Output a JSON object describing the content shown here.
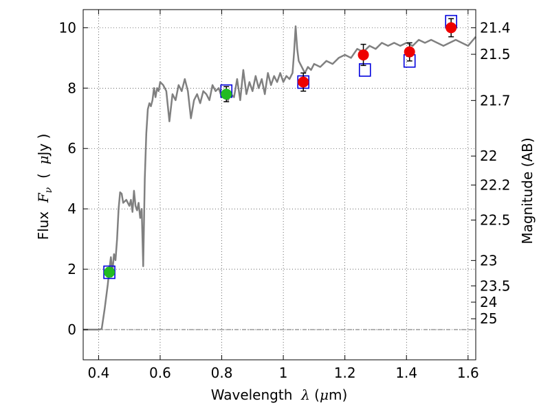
{
  "chart_data": {
    "type": "scatter",
    "xlabel": {
      "text": "Wavelength",
      "var": "λ",
      "unit_open": "(",
      "unit_mu": "μ",
      "unit_rest": "m)"
    },
    "ylabel": {
      "text": "Flux",
      "var": "F",
      "sub": "ν",
      "unit_open": "(",
      "unit_mu": "μ",
      "unit_rest": "Jy )"
    },
    "y2label": "Magnitude (AB)",
    "xlim": [
      0.35,
      1.625
    ],
    "ylim": [
      -1,
      10.6
    ],
    "grid": true,
    "x_ticks": [
      {
        "v": 0.4,
        "label": "0.4"
      },
      {
        "v": 0.6,
        "label": "0.6"
      },
      {
        "v": 0.8,
        "label": "0.8"
      },
      {
        "v": 1.0,
        "label": "1"
      },
      {
        "v": 1.2,
        "label": "1.2"
      },
      {
        "v": 1.4,
        "label": "1.4"
      },
      {
        "v": 1.6,
        "label": "1.6"
      }
    ],
    "y_ticks": [
      {
        "v": 0,
        "label": "0"
      },
      {
        "v": 2,
        "label": "2"
      },
      {
        "v": 4,
        "label": "4"
      },
      {
        "v": 6,
        "label": "6"
      },
      {
        "v": 8,
        "label": "8"
      },
      {
        "v": 10,
        "label": "10"
      }
    ],
    "mag_ticks": [
      {
        "label": "21.4",
        "flux": 10.0
      },
      {
        "label": "21.5",
        "flux": 9.12
      },
      {
        "label": "21.7",
        "flux": 7.59
      },
      {
        "label": "22",
        "flux": 5.75
      },
      {
        "label": "22.2",
        "flux": 4.79
      },
      {
        "label": "22.5",
        "flux": 3.63
      },
      {
        "label": "23",
        "flux": 2.29
      },
      {
        "label": "23.5",
        "flux": 1.45
      },
      {
        "label": "24",
        "flux": 0.91
      },
      {
        "label": "25",
        "flux": 0.36
      }
    ],
    "model_sed": [
      [
        0.35,
        0
      ],
      [
        0.4,
        0
      ],
      [
        0.41,
        0.02
      ],
      [
        0.42,
        0.7
      ],
      [
        0.43,
        1.5
      ],
      [
        0.435,
        2.0
      ],
      [
        0.44,
        2.4
      ],
      [
        0.445,
        1.9
      ],
      [
        0.45,
        2.5
      ],
      [
        0.455,
        2.3
      ],
      [
        0.46,
        3.0
      ],
      [
        0.465,
        4.0
      ],
      [
        0.47,
        4.55
      ],
      [
        0.475,
        4.5
      ],
      [
        0.48,
        4.2
      ],
      [
        0.49,
        4.3
      ],
      [
        0.5,
        4.1
      ],
      [
        0.505,
        4.3
      ],
      [
        0.51,
        3.9
      ],
      [
        0.515,
        4.6
      ],
      [
        0.52,
        4.1
      ],
      [
        0.525,
        3.95
      ],
      [
        0.53,
        4.2
      ],
      [
        0.535,
        3.7
      ],
      [
        0.54,
        4.0
      ],
      [
        0.545,
        2.1
      ],
      [
        0.55,
        5.0
      ],
      [
        0.555,
        6.5
      ],
      [
        0.56,
        7.3
      ],
      [
        0.565,
        7.5
      ],
      [
        0.57,
        7.4
      ],
      [
        0.575,
        7.6
      ],
      [
        0.58,
        8.0
      ],
      [
        0.585,
        7.7
      ],
      [
        0.59,
        8.0
      ],
      [
        0.595,
        7.9
      ],
      [
        0.6,
        8.2
      ],
      [
        0.61,
        8.1
      ],
      [
        0.62,
        7.9
      ],
      [
        0.63,
        6.9
      ],
      [
        0.64,
        7.8
      ],
      [
        0.65,
        7.6
      ],
      [
        0.66,
        8.1
      ],
      [
        0.67,
        7.9
      ],
      [
        0.68,
        8.3
      ],
      [
        0.69,
        7.9
      ],
      [
        0.7,
        7.0
      ],
      [
        0.71,
        7.6
      ],
      [
        0.72,
        7.8
      ],
      [
        0.73,
        7.5
      ],
      [
        0.74,
        7.9
      ],
      [
        0.75,
        7.8
      ],
      [
        0.76,
        7.6
      ],
      [
        0.77,
        8.1
      ],
      [
        0.78,
        7.9
      ],
      [
        0.79,
        8.0
      ],
      [
        0.8,
        7.7
      ],
      [
        0.81,
        7.9
      ],
      [
        0.82,
        7.6
      ],
      [
        0.83,
        7.8
      ],
      [
        0.84,
        7.7
      ],
      [
        0.85,
        8.3
      ],
      [
        0.86,
        7.6
      ],
      [
        0.87,
        8.6
      ],
      [
        0.88,
        7.8
      ],
      [
        0.89,
        8.2
      ],
      [
        0.9,
        7.9
      ],
      [
        0.91,
        8.4
      ],
      [
        0.92,
        8.0
      ],
      [
        0.93,
        8.3
      ],
      [
        0.94,
        7.8
      ],
      [
        0.95,
        8.5
      ],
      [
        0.96,
        8.1
      ],
      [
        0.97,
        8.4
      ],
      [
        0.98,
        8.2
      ],
      [
        0.99,
        8.5
      ],
      [
        1.0,
        8.2
      ],
      [
        1.01,
        8.4
      ],
      [
        1.02,
        8.3
      ],
      [
        1.03,
        8.5
      ],
      [
        1.035,
        9.2
      ],
      [
        1.04,
        10.05
      ],
      [
        1.045,
        9.3
      ],
      [
        1.05,
        8.9
      ],
      [
        1.06,
        8.7
      ],
      [
        1.07,
        8.5
      ],
      [
        1.08,
        8.7
      ],
      [
        1.09,
        8.6
      ],
      [
        1.1,
        8.8
      ],
      [
        1.12,
        8.7
      ],
      [
        1.14,
        8.9
      ],
      [
        1.16,
        8.8
      ],
      [
        1.18,
        9.0
      ],
      [
        1.2,
        9.1
      ],
      [
        1.22,
        9.0
      ],
      [
        1.24,
        9.3
      ],
      [
        1.26,
        9.2
      ],
      [
        1.28,
        9.4
      ],
      [
        1.3,
        9.3
      ],
      [
        1.32,
        9.5
      ],
      [
        1.34,
        9.4
      ],
      [
        1.36,
        9.5
      ],
      [
        1.38,
        9.4
      ],
      [
        1.4,
        9.5
      ],
      [
        1.42,
        9.4
      ],
      [
        1.44,
        9.6
      ],
      [
        1.46,
        9.5
      ],
      [
        1.48,
        9.6
      ],
      [
        1.5,
        9.5
      ],
      [
        1.52,
        9.4
      ],
      [
        1.54,
        9.5
      ],
      [
        1.56,
        9.6
      ],
      [
        1.58,
        9.5
      ],
      [
        1.6,
        9.4
      ],
      [
        1.625,
        9.7
      ]
    ],
    "observed_points": [
      {
        "x": 0.435,
        "y": 1.9,
        "err": 0.15,
        "color": "#22bb22"
      },
      {
        "x": 0.815,
        "y": 7.8,
        "err": 0.25,
        "color": "#22bb22"
      },
      {
        "x": 1.065,
        "y": 8.2,
        "err": 0.3,
        "color": "#ee0000"
      },
      {
        "x": 1.26,
        "y": 9.1,
        "err": 0.35,
        "color": "#ee0000"
      },
      {
        "x": 1.41,
        "y": 9.2,
        "err": 0.3,
        "color": "#ee0000"
      },
      {
        "x": 1.545,
        "y": 10.0,
        "err": 0.3,
        "color": "#ee0000"
      }
    ],
    "model_points": [
      {
        "x": 0.435,
        "y": 1.9
      },
      {
        "x": 0.815,
        "y": 7.9
      },
      {
        "x": 1.065,
        "y": 8.2
      },
      {
        "x": 1.265,
        "y": 8.6
      },
      {
        "x": 1.41,
        "y": 8.9
      },
      {
        "x": 1.545,
        "y": 10.2
      }
    ],
    "colors": {
      "model_line": "#808080",
      "model_box": "#0000dd",
      "errorbar": "#000000",
      "zero_line": "#666666"
    }
  }
}
